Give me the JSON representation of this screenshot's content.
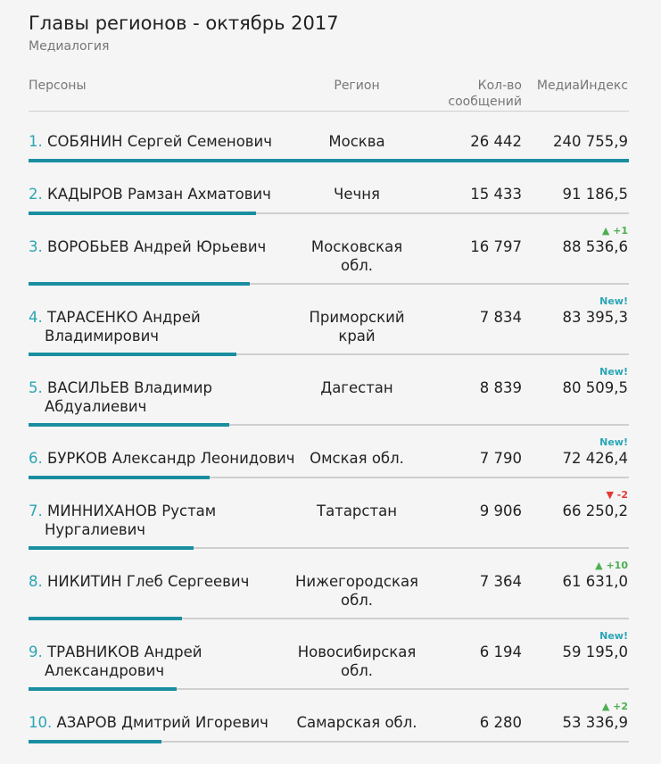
{
  "title": "Главы регионов - октябрь 2017",
  "subtitle": "Медиалогия",
  "headers": {
    "person": "Персоны",
    "region": "Регион",
    "count_line1": "Кол-во",
    "count_line2": "сообщений",
    "index": "МедиаИндекс"
  },
  "colors": {
    "accent": "#1a8ea0",
    "rank": "#2aa5b5",
    "up": "#4caf50",
    "down": "#e53935",
    "track": "#cfcfcf"
  },
  "rows": [
    {
      "rank": "1.",
      "name_line1": "СОБЯНИН Сергей Семенович",
      "name_line2": "",
      "region_line1": "Москва",
      "region_line2": "",
      "count": "26 442",
      "index": "240 755,9",
      "change": "",
      "change_type": "",
      "bar_fraction": 1.0
    },
    {
      "rank": "2.",
      "name_line1": "КАДЫРОВ Рамзан Ахматович",
      "name_line2": "",
      "region_line1": "Чечня",
      "region_line2": "",
      "count": "15 433",
      "index": "91 186,5",
      "change": "",
      "change_type": "",
      "bar_fraction": 0.379
    },
    {
      "rank": "3.",
      "name_line1": "ВОРОБЬЕВ Андрей Юрьевич",
      "name_line2": "",
      "region_line1": "Московская",
      "region_line2": "обл.",
      "count": "16 797",
      "index": "88 536,6",
      "change": "▲ +1",
      "change_type": "up",
      "bar_fraction": 0.368
    },
    {
      "rank": "4.",
      "name_line1": "ТАРАСЕНКО Андрей",
      "name_line2": "Владимирович",
      "region_line1": "Приморский",
      "region_line2": "край",
      "count": "7 834",
      "index": "83 395,3",
      "change": "New!",
      "change_type": "new",
      "bar_fraction": 0.346
    },
    {
      "rank": "5.",
      "name_line1": "ВАСИЛЬЕВ Владимир",
      "name_line2": "Абдуалиевич",
      "region_line1": "Дагестан",
      "region_line2": "",
      "count": "8 839",
      "index": "80 509,5",
      "change": "New!",
      "change_type": "new",
      "bar_fraction": 0.334
    },
    {
      "rank": "6.",
      "name_line1": "БУРКОВ Александр Леонидович",
      "name_line2": "",
      "region_line1": "Омская обл.",
      "region_line2": "",
      "count": "7 790",
      "index": "72 426,4",
      "change": "New!",
      "change_type": "new",
      "bar_fraction": 0.301
    },
    {
      "rank": "7.",
      "name_line1": "МИННИХАНОВ Рустам",
      "name_line2": "Нургалиевич",
      "region_line1": "Татарстан",
      "region_line2": "",
      "count": "9 906",
      "index": "66 250,2",
      "change": "▼ -2",
      "change_type": "down",
      "bar_fraction": 0.275
    },
    {
      "rank": "8.",
      "name_line1": "НИКИТИН Глеб Сергеевич",
      "name_line2": "",
      "region_line1": "Нижегородская",
      "region_line2": "обл.",
      "count": "7 364",
      "index": "61 631,0",
      "change": "▲ +10",
      "change_type": "up",
      "bar_fraction": 0.256
    },
    {
      "rank": "9.",
      "name_line1": "ТРАВНИКОВ Андрей",
      "name_line2": "Александрович",
      "region_line1": "Новосибирская",
      "region_line2": "обл.",
      "count": "6 194",
      "index": "59 195,0",
      "change": "New!",
      "change_type": "new",
      "bar_fraction": 0.246
    },
    {
      "rank": "10.",
      "name_line1": "АЗАРОВ Дмитрий Игоревич",
      "name_line2": "",
      "region_line1": "Самарская обл.",
      "region_line2": "",
      "count": "6 280",
      "index": "53 336,9",
      "change": "▲ +2",
      "change_type": "up",
      "bar_fraction": 0.222
    }
  ]
}
